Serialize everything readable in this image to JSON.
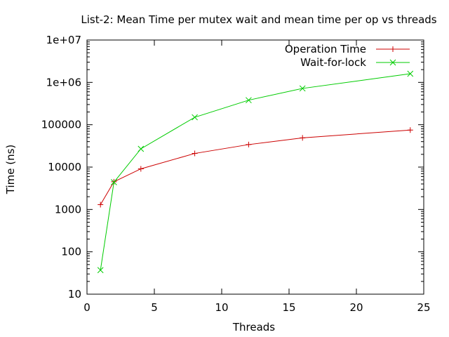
{
  "chart_data": {
    "type": "line",
    "title": "List-2: Mean Time per mutex wait and mean time per op vs threads",
    "xlabel": "Threads",
    "ylabel": "Time (ns)",
    "xlim": [
      0,
      25
    ],
    "ylim": [
      10,
      10000000
    ],
    "yscale": "log",
    "grid": false,
    "legend_position": "top-right",
    "x_ticks": [
      0,
      5,
      10,
      15,
      20,
      25
    ],
    "x_tick_labels": [
      "0",
      "5",
      "10",
      "15",
      "20",
      "25"
    ],
    "y_ticks": [
      10,
      100,
      1000,
      10000,
      100000,
      1000000,
      10000000
    ],
    "y_tick_labels": [
      "10",
      "100",
      "1000",
      "10000",
      "100000",
      "1e+06",
      "1e+07"
    ],
    "series": [
      {
        "name": "Operation Time",
        "color": "#cc0000",
        "marker": "plus",
        "x": [
          1,
          2,
          4,
          8,
          12,
          16,
          24
        ],
        "y": [
          1300,
          4500,
          9100,
          21000,
          34000,
          49000,
          75000
        ]
      },
      {
        "name": "Wait-for-lock",
        "color": "#00cc00",
        "marker": "cross",
        "x": [
          1,
          2,
          4,
          8,
          12,
          16,
          24
        ],
        "y": [
          37,
          4400,
          27000,
          150000,
          380000,
          720000,
          1600000
        ]
      }
    ]
  }
}
